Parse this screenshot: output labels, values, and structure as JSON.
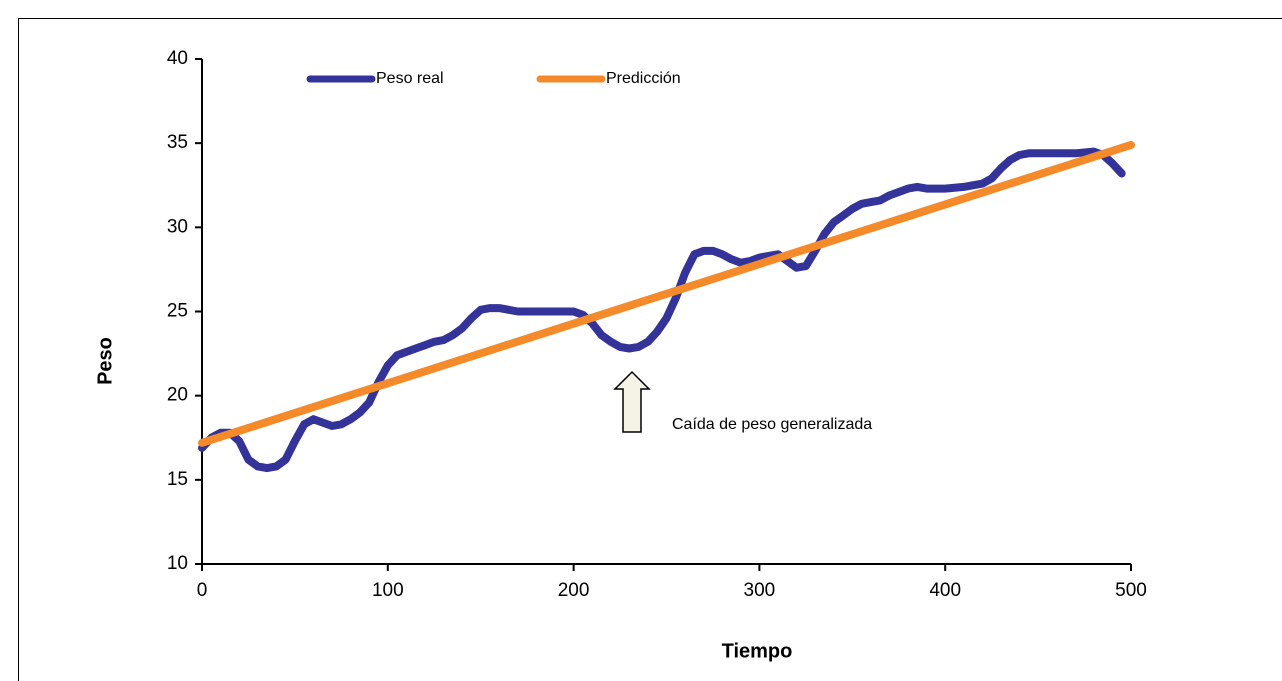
{
  "chart_data": {
    "type": "line",
    "x_label": "Tiempo",
    "y_label": "Peso",
    "xlim": [
      0,
      500
    ],
    "ylim": [
      10,
      40
    ],
    "xticks": [
      0,
      100,
      200,
      300,
      400,
      500
    ],
    "yticks": [
      10,
      15,
      20,
      25,
      30,
      35,
      40
    ],
    "legend": "top-left",
    "annotation": "Caída de peso generalizada",
    "series": [
      {
        "name": "Peso real",
        "color": "#333399",
        "x": [
          0,
          5,
          10,
          15,
          20,
          25,
          30,
          35,
          40,
          45,
          50,
          55,
          60,
          65,
          70,
          75,
          80,
          85,
          90,
          95,
          100,
          105,
          110,
          115,
          120,
          125,
          130,
          135,
          140,
          145,
          150,
          155,
          160,
          165,
          170,
          180,
          190,
          200,
          205,
          210,
          215,
          220,
          225,
          230,
          235,
          240,
          245,
          250,
          255,
          260,
          265,
          270,
          275,
          280,
          285,
          290,
          295,
          300,
          305,
          310,
          315,
          320,
          325,
          330,
          335,
          340,
          345,
          350,
          355,
          360,
          365,
          370,
          375,
          380,
          385,
          390,
          395,
          400,
          410,
          420,
          425,
          430,
          435,
          440,
          445,
          450,
          460,
          470,
          480,
          485,
          490,
          495
        ],
        "values": [
          16.9,
          17.5,
          17.8,
          17.8,
          17.3,
          16.2,
          15.8,
          15.7,
          15.8,
          16.2,
          17.3,
          18.3,
          18.6,
          18.4,
          18.2,
          18.3,
          18.6,
          19.0,
          19.6,
          20.8,
          21.8,
          22.4,
          22.6,
          22.8,
          23.0,
          23.2,
          23.3,
          23.6,
          24.0,
          24.6,
          25.1,
          25.2,
          25.2,
          25.1,
          25.0,
          25.0,
          25.0,
          25.0,
          24.8,
          24.3,
          23.6,
          23.2,
          22.9,
          22.8,
          22.9,
          23.2,
          23.8,
          24.6,
          25.8,
          27.3,
          28.4,
          28.6,
          28.6,
          28.4,
          28.1,
          27.9,
          28.0,
          28.2,
          28.3,
          28.4,
          28.0,
          27.6,
          27.7,
          28.6,
          29.6,
          30.3,
          30.7,
          31.1,
          31.4,
          31.5,
          31.6,
          31.9,
          32.1,
          32.3,
          32.4,
          32.3,
          32.3,
          32.3,
          32.4,
          32.6,
          32.9,
          33.5,
          34.0,
          34.3,
          34.4,
          34.4,
          34.4,
          34.4,
          34.5,
          34.3,
          33.8,
          33.2
        ]
      },
      {
        "name": "Predicción",
        "color": "#f58a2a",
        "x": [
          0,
          500
        ],
        "values": [
          17.2,
          34.9
        ]
      }
    ]
  }
}
